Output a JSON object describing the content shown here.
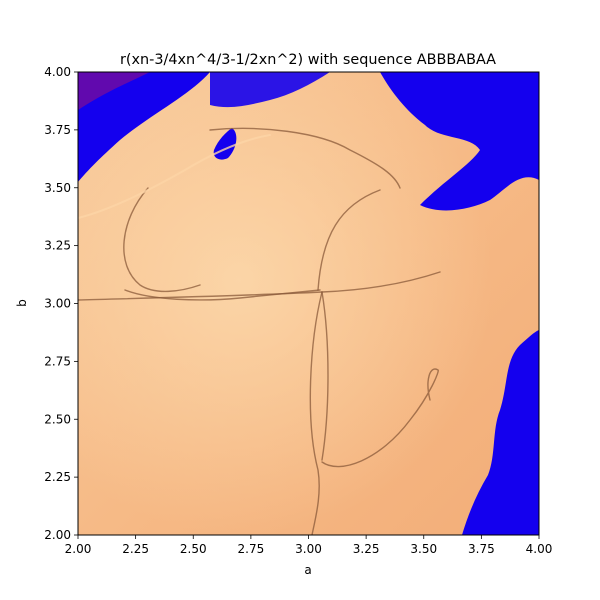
{
  "chart_data": {
    "type": "heatmap",
    "title": "r(xn-3/4xn^4/3-1/2xn^2) with sequence ABBBABAA",
    "xlabel": "a",
    "ylabel": "b",
    "xlim": [
      2.0,
      4.0
    ],
    "ylim": [
      2.0,
      4.0
    ],
    "x_ticks": [
      "2.00",
      "2.25",
      "2.50",
      "2.75",
      "3.00",
      "3.25",
      "3.50",
      "3.75",
      "4.00"
    ],
    "y_ticks": [
      "2.00",
      "2.25",
      "2.50",
      "2.75",
      "3.00",
      "3.25",
      "3.50",
      "3.75",
      "4.00"
    ],
    "grid": false,
    "colormap": {
      "stable_light": "#fcd5a6",
      "stable_mid": "#f5b886",
      "stable_dark": "#8a5a3a",
      "chaotic": "#1400ee",
      "chaotic_accent": "#a0107a"
    }
  }
}
